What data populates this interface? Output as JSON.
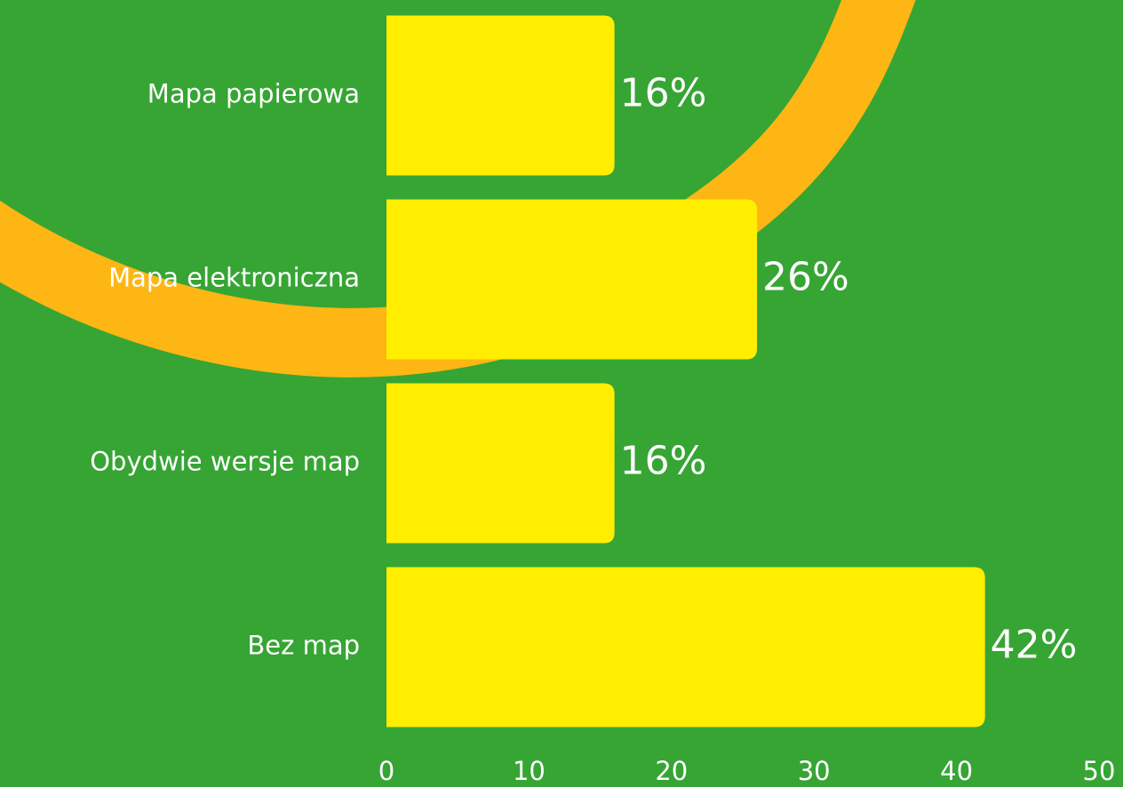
{
  "chart_data": {
    "type": "bar",
    "orientation": "horizontal",
    "categories": [
      "Mapa papierowa",
      "Mapa elektroniczna",
      "Obydwie wersje map",
      "Bez map"
    ],
    "values": [
      16,
      26,
      16,
      42
    ],
    "value_labels": [
      "16%",
      "26%",
      "16%",
      "42%"
    ],
    "color": "#ffee00",
    "xlim": [
      0,
      50
    ],
    "xticks": [
      0,
      10,
      20,
      30,
      40,
      50
    ],
    "grid": false
  }
}
